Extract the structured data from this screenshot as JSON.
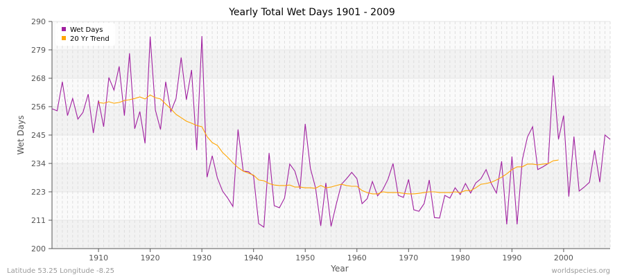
{
  "chart_data": {
    "type": "line",
    "title": "Yearly Total Wet Days 1901 - 2009",
    "xlabel": "Year",
    "ylabel": "Wet Days",
    "xlim": [
      1901,
      2009
    ],
    "ylim": [
      200,
      290
    ],
    "x_ticks": [
      "1910",
      "1920",
      "1930",
      "1940",
      "1950",
      "1960",
      "1970",
      "1980",
      "1990",
      "2000"
    ],
    "y_ticks": [
      "200",
      "211",
      "223",
      "234",
      "245",
      "256",
      "268",
      "279",
      "290"
    ],
    "grid": true,
    "legend_position": "top-left",
    "series": [
      {
        "name": "Wet Days",
        "color": "#a020a0",
        "start_year": 1901,
        "values": [
          255.4,
          254.6,
          266.1,
          252.7,
          259.5,
          251.3,
          254,
          261.2,
          245.8,
          258.7,
          248.3,
          267.8,
          262.8,
          272.2,
          252.7,
          277.4,
          247.5,
          254.3,
          241.7,
          284,
          254.9,
          247.2,
          266.1,
          254.3,
          259.5,
          275.7,
          259,
          270.8,
          239,
          284.2,
          228.3,
          236.8,
          228,
          222.8,
          220,
          216.7,
          247.2,
          230.7,
          230.5,
          228.8,
          209.9,
          208.5,
          237.9,
          217,
          216.2,
          220,
          233.5,
          230.7,
          223.6,
          249.4,
          231.8,
          224.1,
          209,
          226,
          208.8,
          217.6,
          225.5,
          227.7,
          230.2,
          227.7,
          217.8,
          219.8,
          226.6,
          220.9,
          223.3,
          227.4,
          233.7,
          221.1,
          220.3,
          227.4,
          215.4,
          214.8,
          217.8,
          227.2,
          212.3,
          212.1,
          221.1,
          220,
          224.1,
          221.4,
          225.8,
          222,
          226,
          227.7,
          231.3,
          225.8,
          222,
          234.6,
          209.6,
          236.5,
          209.6,
          235.1,
          244.2,
          248.3,
          231.3,
          232.4,
          233.7,
          268.6,
          243.3,
          252.7,
          220.6,
          244.4,
          222.8,
          224.4,
          226.3,
          239,
          226.3,
          245,
          243.3
        ]
      },
      {
        "name": "20 Yr Trend",
        "color": "#ffa500",
        "start_year": 1910,
        "values": [
          257.9,
          257.6,
          258.2,
          257.6,
          257.9,
          258.7,
          259,
          259.5,
          260.1,
          259.3,
          260.9,
          259.8,
          259.3,
          257.3,
          255.4,
          253.2,
          251.9,
          250.5,
          249.7,
          248.8,
          248.3,
          244.4,
          242,
          240.9,
          238.1,
          236.2,
          234,
          232.1,
          230.7,
          229.9,
          229.1,
          227.2,
          226.9,
          225.8,
          225.2,
          225,
          225,
          225.2,
          224.4,
          224.4,
          224.1,
          224.1,
          223.9,
          225,
          224.1,
          224.4,
          225,
          225.5,
          225,
          224.7,
          224.7,
          223,
          222.2,
          221.7,
          221.7,
          222.5,
          222.2,
          222.2,
          222.2,
          221.9,
          221.7,
          221.7,
          221.9,
          222.2,
          222.5,
          222.5,
          222.2,
          222.2,
          222.2,
          222.5,
          222.2,
          223,
          223,
          224.1,
          225.5,
          225.8,
          226.3,
          227.2,
          228.3,
          229.6,
          231.3,
          232.4,
          232.4,
          233.5,
          233.5,
          233.2,
          233.5,
          233.7,
          234.8,
          235.1
        ]
      }
    ]
  },
  "footer": {
    "location": "Latitude 53.25 Longitude -8.25",
    "source": "worldspecies.org"
  }
}
